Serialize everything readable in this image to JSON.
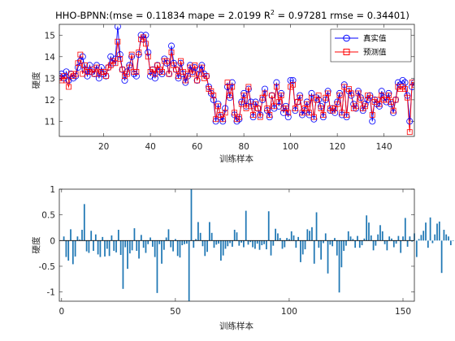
{
  "chart_data": [
    {
      "type": "line",
      "title_prefix": "HHO-BPNN:(mse = 0.11834 mape = 2.0199  R",
      "title_sup": "2",
      "title_suffix": " = 0.97281 rmse = 0.34401)",
      "xlabel": "训练样本",
      "ylabel": "硬度",
      "xlim": [
        1,
        153
      ],
      "ylim": [
        10.3,
        15.5
      ],
      "xticks": [
        20,
        40,
        60,
        80,
        100,
        120,
        140
      ],
      "yticks": [
        11,
        12,
        13,
        14,
        15
      ],
      "legend_position": "top-right",
      "series": [
        {
          "name": "真实值",
          "color": "#0000ff",
          "marker": "circle",
          "values": [
            13.1,
            13.2,
            13.0,
            13.3,
            12.9,
            13.2,
            13.0,
            13.1,
            13.5,
            13.8,
            14.0,
            13.4,
            13.1,
            13.6,
            13.3,
            13.2,
            13.6,
            13.0,
            13.5,
            13.2,
            13.1,
            13.5,
            14.0,
            13.7,
            13.9,
            15.4,
            14.1,
            13.4,
            12.9,
            13.3,
            13.6,
            14.0,
            13.2,
            13.1,
            14.1,
            15.0,
            14.8,
            15.0,
            14.2,
            13.1,
            13.4,
            13.0,
            13.6,
            13.3,
            13.2,
            13.9,
            13.7,
            13.2,
            14.5,
            13.7,
            13.4,
            13.0,
            13.7,
            13.2,
            12.8,
            13.1,
            13.6,
            13.3,
            13.5,
            12.9,
            13.4,
            13.6,
            13.2,
            13.1,
            12.6,
            12.3,
            12.0,
            11.0,
            11.8,
            11.2,
            11.0,
            11.6,
            12.6,
            12.1,
            12.8,
            11.3,
            11.0,
            11.1,
            11.9,
            12.3,
            11.7,
            12.5,
            11.9,
            11.2,
            11.9,
            11.6,
            11.3,
            12.0,
            12.5,
            11.5,
            11.2,
            12.2,
            11.6,
            12.8,
            11.7,
            12.3,
            11.4,
            11.7,
            11.2,
            12.9,
            12.9,
            11.5,
            11.9,
            12.2,
            11.3,
            11.5,
            11.9,
            11.3,
            12.3,
            11.1,
            12.1,
            12.0,
            11.7,
            11.2,
            12.0,
            12.4,
            11.5,
            11.6,
            11.4,
            11.9,
            12.3,
            11.3,
            12.7,
            11.2,
            12.4,
            12.2,
            11.8,
            11.6,
            12.4,
            12.1,
            11.5,
            11.8,
            12.0,
            12.2,
            11.0,
            12.0,
            11.8,
            11.7,
            12.4,
            12.1,
            11.9,
            12.3,
            11.8,
            11.4,
            12.0,
            12.8,
            12.7,
            12.9,
            12.8,
            12.2,
            11.0,
            12.6,
            12.8
          ]
        },
        {
          "name": "预测值",
          "color": "#ff0000",
          "marker": "square",
          "values": [
            13.0,
            12.9,
            13.1,
            12.9,
            12.6,
            13.2,
            13.1,
            13.2,
            13.7,
            14.1,
            13.2,
            13.6,
            13.3,
            13.3,
            13.4,
            13.2,
            13.5,
            13.2,
            13.3,
            13.3,
            13.1,
            13.5,
            13.6,
            13.8,
            13.7,
            14.7,
            13.9,
            13.4,
            13.1,
            13.2,
            13.5,
            14.1,
            13.3,
            13.3,
            14.2,
            14.8,
            14.9,
            14.6,
            14.0,
            13.3,
            13.4,
            13.2,
            13.6,
            13.4,
            13.3,
            13.8,
            13.8,
            13.2,
            14.2,
            13.6,
            13.4,
            13.1,
            13.8,
            13.3,
            12.9,
            13.2,
            13.5,
            13.2,
            13.6,
            12.9,
            13.2,
            13.5,
            13.0,
            13.1,
            12.5,
            12.4,
            12.2,
            11.1,
            11.7,
            11.3,
            11.1,
            11.4,
            12.8,
            12.2,
            12.6,
            11.4,
            11.1,
            11.2,
            11.8,
            12.2,
            11.6,
            12.6,
            11.7,
            11.3,
            11.8,
            11.6,
            11.2,
            12.1,
            12.3,
            11.6,
            11.3,
            12.2,
            11.7,
            12.6,
            11.9,
            12.2,
            11.6,
            11.6,
            11.4,
            12.6,
            12.7,
            11.6,
            11.9,
            12.1,
            11.4,
            11.6,
            11.8,
            11.4,
            12.1,
            11.2,
            12.0,
            12.2,
            11.6,
            11.3,
            12.1,
            12.3,
            11.6,
            11.5,
            11.6,
            11.8,
            12.2,
            11.4,
            12.6,
            11.3,
            12.5,
            12.3,
            11.6,
            11.7,
            12.3,
            12.0,
            11.6,
            11.7,
            12.2,
            12.1,
            11.3,
            11.9,
            12.0,
            11.8,
            12.2,
            12.0,
            12.0,
            12.2,
            11.9,
            11.5,
            12.0,
            12.6,
            12.5,
            12.6,
            12.5,
            12.1,
            10.5,
            12.8,
            12.7
          ]
        }
      ]
    },
    {
      "type": "bar",
      "xlabel": "训练样本",
      "ylabel": "硬度",
      "xlim": [
        -1,
        155
      ],
      "ylim": [
        -1.18,
        1.0
      ],
      "xticks": [
        0,
        50,
        100,
        150
      ],
      "yticks": [
        -1,
        -0.5,
        0,
        0.5,
        1
      ],
      "color": "#1f77b4",
      "values": [
        0.08,
        -0.32,
        -0.39,
        0.22,
        -0.46,
        -0.31,
        0.08,
        0.02,
        0.21,
        0.71,
        -0.21,
        -0.24,
        0.19,
        -0.2,
        0.12,
        -0.27,
        -0.32,
        0.07,
        -0.31,
        -0.16,
        -0.3,
        0.1,
        -0.2,
        -0.23,
        0.21,
        -0.28,
        -0.94,
        -0.13,
        -0.55,
        -0.25,
        -0.19,
        0.24,
        -0.2,
        -0.35,
        0.11,
        -0.14,
        -0.24,
        -0.07,
        0.06,
        -0.12,
        -0.32,
        -1.02,
        -0.07,
        -0.45,
        -0.18,
        0.06,
        0.22,
        -0.13,
        -0.21,
        0.03,
        -0.3,
        -0.33,
        -0.09,
        -0.07,
        -0.06,
        -1.18,
        1.0,
        -0.14,
        0.03,
        0.36,
        0.15,
        -0.11,
        -0.3,
        -0.22,
        0.36,
        0.15,
        -0.14,
        -0.08,
        -0.06,
        -0.39,
        -0.29,
        -0.16,
        -0.11,
        -0.05,
        -0.12,
        0.21,
        0.16,
        -0.1,
        -0.04,
        -0.13,
        0.58,
        -0.08,
        -0.03,
        -0.13,
        -0.16,
        -0.06,
        -0.18,
        -0.09,
        -0.07,
        -0.17,
        0.57,
        -0.29,
        -0.1,
        0.23,
        0.14,
        0.05,
        -0.16,
        -0.13,
        0.05,
        0.03,
        0.18,
        0.1,
        -0.14,
        0.07,
        -0.42,
        -0.27,
        -0.17,
        0.22,
        0.19,
        0.26,
        -0.45,
        0.55,
        -0.14,
        -0.37,
        -0.05,
        0.14,
        -0.64,
        -0.08,
        -0.11,
        0.05,
        -0.29,
        -1.01,
        -0.52,
        -0.2,
        -0.1,
        0.18,
        0.08,
        0.03,
        -0.14,
        0.09,
        -0.14,
        -0.09,
        0.04,
        0.49,
        0.35,
        0.1,
        -0.19,
        -0.1,
        0.12,
        0.3,
        0.18,
        -0.07,
        -0.19,
        0.08,
        0.04,
        -0.13,
        -0.06,
        0.09,
        -0.24,
        0.08,
        0.44,
        -0.12,
        0.08,
        -0.02,
        0.14,
        -0.32,
        0.03,
        0.11,
        0.19,
        0.35,
        -0.14,
        0.45,
        -0.05,
        0.12,
        0.33,
        0.37,
        -0.63,
        0.21,
        0.12,
        0.08,
        -0.09,
        -0.01
      ]
    }
  ]
}
